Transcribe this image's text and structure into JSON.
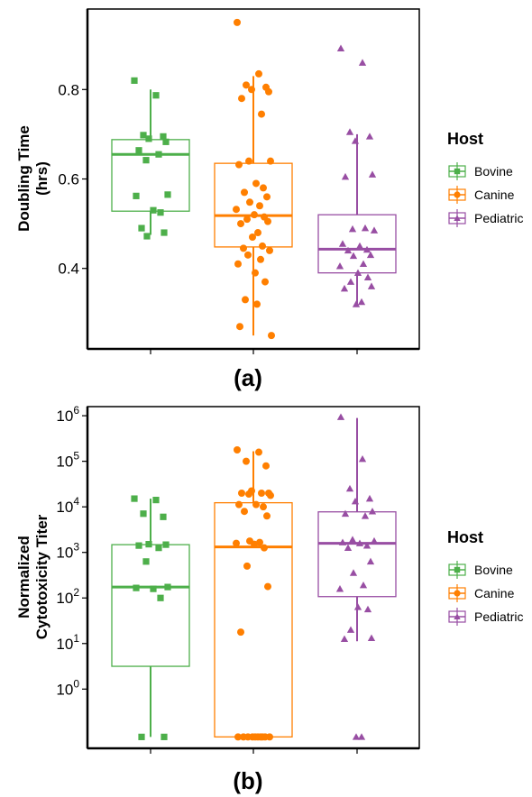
{
  "figure_labels": [
    "(a)",
    "(b)"
  ],
  "colors": {
    "Bovine": "#4daf4a",
    "Canine": "#ff7f00",
    "Pediatric": "#984ea3"
  },
  "chart_data": [
    {
      "panel_label": "(a)",
      "type": "box",
      "ylabel": "Doubling Time\n(hrs)",
      "yscale": "linear",
      "ylim": [
        0.22,
        0.98
      ],
      "yticks": [
        0.4,
        0.6,
        0.8
      ],
      "yticklabels": [
        "0.4",
        "0.6",
        "0.8"
      ],
      "categories": [
        "Bovine",
        "Canine",
        "Pediatric"
      ],
      "legend": {
        "title": "Host",
        "entries": [
          "Bovine",
          "Canine",
          "Pediatric"
        ],
        "position": "right"
      },
      "grid": false,
      "boxes": [
        {
          "name": "Bovine",
          "marker": "square",
          "q1": 0.528,
          "median": 0.655,
          "q3": 0.688,
          "whisker_low": 0.475,
          "whisker_high": 0.8
        },
        {
          "name": "Canine",
          "marker": "circle",
          "q1": 0.448,
          "median": 0.518,
          "q3": 0.635,
          "whisker_low": 0.25,
          "whisker_high": 0.83
        },
        {
          "name": "Pediatric",
          "marker": "triangle",
          "q1": 0.39,
          "median": 0.443,
          "q3": 0.52,
          "whisker_low": 0.32,
          "whisker_high": 0.7
        }
      ],
      "points": [
        {
          "name": "Bovine",
          "values": [
            0.82,
            0.787,
            0.698,
            0.695,
            0.69,
            0.683,
            0.664,
            0.655,
            0.642,
            0.565,
            0.562,
            0.53,
            0.525,
            0.49,
            0.48,
            0.472
          ]
        },
        {
          "name": "Canine",
          "values": [
            0.95,
            0.835,
            0.81,
            0.805,
            0.8,
            0.795,
            0.78,
            0.745,
            0.64,
            0.64,
            0.632,
            0.59,
            0.58,
            0.57,
            0.56,
            0.548,
            0.54,
            0.532,
            0.52,
            0.515,
            0.51,
            0.505,
            0.5,
            0.48,
            0.47,
            0.45,
            0.445,
            0.44,
            0.43,
            0.42,
            0.41,
            0.39,
            0.37,
            0.33,
            0.32,
            0.27,
            0.25
          ]
        },
        {
          "name": "Pediatric",
          "values": [
            0.892,
            0.86,
            0.705,
            0.695,
            0.685,
            0.61,
            0.605,
            0.49,
            0.488,
            0.485,
            0.455,
            0.45,
            0.442,
            0.44,
            0.43,
            0.428,
            0.41,
            0.405,
            0.39,
            0.38,
            0.37,
            0.36,
            0.355,
            0.325,
            0.32
          ]
        }
      ]
    },
    {
      "panel_label": "(b)",
      "type": "box",
      "ylabel": "Normalized\nCytotoxicity Titer",
      "yscale": "log10",
      "ylim": [
        -1.3,
        6.2
      ],
      "yticks": [
        0,
        1,
        2,
        3,
        4,
        5,
        6
      ],
      "yticklabels": [
        "10^0",
        "10^1",
        "10^2",
        "10^3",
        "10^4",
        "10^5",
        "10^6"
      ],
      "categories": [
        "Bovine",
        "Canine",
        "Pediatric"
      ],
      "legend": {
        "title": "Host",
        "entries": [
          "Bovine",
          "Canine",
          "Pediatric"
        ],
        "position": "right"
      },
      "grid": false,
      "boxes": [
        {
          "name": "Bovine",
          "marker": "square",
          "q1_log10": 0.5,
          "median_log10": 2.24,
          "q3_log10": 3.17,
          "whisker_low_log10": -1.05,
          "whisker_high_log10": 4.18
        },
        {
          "name": "Canine",
          "marker": "circle",
          "q1_log10": -1.05,
          "median_log10": 3.12,
          "q3_log10": 4.09,
          "whisker_low_log10": -1.05,
          "whisker_high_log10": 5.22
        },
        {
          "name": "Pediatric",
          "marker": "triangle",
          "q1_log10": 2.03,
          "median_log10": 3.2,
          "q3_log10": 3.89,
          "whisker_low_log10": 1.05,
          "whisker_high_log10": 5.95
        }
      ],
      "points_log10": [
        {
          "name": "Bovine",
          "values": [
            4.18,
            4.15,
            3.85,
            3.78,
            3.18,
            3.17,
            3.15,
            3.1,
            2.8,
            2.24,
            2.22,
            2.2,
            2.0,
            -1.05,
            -1.05
          ]
        },
        {
          "name": "Canine",
          "values": [
            5.25,
            5.2,
            5.0,
            4.9,
            4.35,
            4.3,
            4.3,
            4.3,
            4.28,
            4.25,
            4.05,
            4.05,
            4.0,
            3.9,
            3.8,
            3.25,
            3.22,
            3.2,
            3.18,
            3.1,
            2.7,
            2.25,
            1.25,
            -1.05,
            -1.05,
            -1.05,
            -1.05,
            -1.05,
            -1.05,
            -1.05,
            -1.05,
            -1.05,
            -1.05
          ]
        },
        {
          "name": "Pediatric",
          "values": [
            5.97,
            5.05,
            4.4,
            4.18,
            4.12,
            3.9,
            3.85,
            3.8,
            3.28,
            3.25,
            3.22,
            3.2,
            3.15,
            3.1,
            2.8,
            2.55,
            2.28,
            2.2,
            1.8,
            1.75,
            1.3,
            1.12,
            1.1,
            -1.05,
            -1.05
          ]
        }
      ]
    }
  ]
}
